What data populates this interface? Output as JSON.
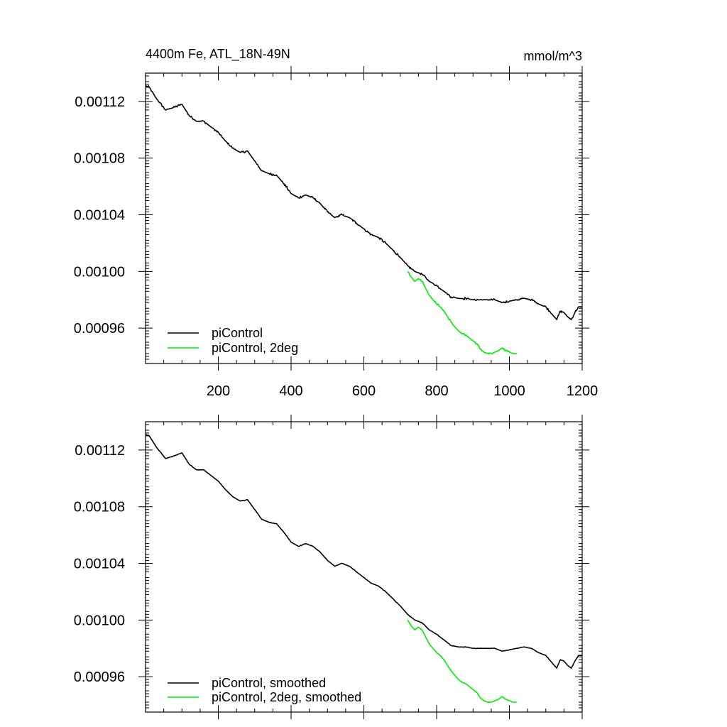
{
  "chart_data": [
    {
      "type": "line",
      "title": "4400m Fe, ATL_18N-49N",
      "units": "mmol/m^3",
      "xlim": [
        0,
        1200
      ],
      "ylim": [
        0.000935,
        0.00114
      ],
      "x_ticks": [
        200,
        400,
        600,
        800,
        1000,
        1200
      ],
      "x_tick_labels": [
        "200",
        "400",
        "600",
        "800",
        "1000",
        "1200"
      ],
      "y_ticks": [
        0.00112,
        0.00108,
        0.00104,
        0.001,
        0.00096
      ],
      "y_tick_labels": [
        "0.00112",
        "0.00108",
        "0.00104",
        "0.00100",
        "0.00096"
      ],
      "show_x_labels": true,
      "legend": [
        "piControl",
        "piControl, 2deg"
      ],
      "series": [
        {
          "name": "piControl",
          "color": "#000000",
          "noise": 0.6,
          "x": [
            0,
            10,
            30,
            55,
            80,
            100,
            120,
            140,
            160,
            180,
            200,
            220,
            240,
            260,
            280,
            300,
            320,
            340,
            360,
            380,
            400,
            420,
            440,
            460,
            480,
            500,
            520,
            540,
            560,
            580,
            600,
            620,
            640,
            660,
            680,
            700,
            720,
            740,
            760,
            780,
            800,
            820,
            840,
            860,
            880,
            900,
            920,
            940,
            960,
            980,
            1000,
            1020,
            1040,
            1060,
            1080,
            1100,
            1110,
            1120,
            1130,
            1140,
            1150,
            1160,
            1170,
            1180,
            1190,
            1200
          ],
          "y": [
            0.001131,
            0.00113,
            0.001122,
            0.001114,
            0.001116,
            0.001118,
            0.00111,
            0.001106,
            0.001106,
            0.001102,
            0.001098,
            0.001092,
            0.001087,
            0.001084,
            0.001085,
            0.001078,
            0.001071,
            0.001069,
            0.001068,
            0.001062,
            0.001055,
            0.001052,
            0.001054,
            0.001052,
            0.001048,
            0.001042,
            0.001038,
            0.00104,
            0.001038,
            0.001034,
            0.00103,
            0.001026,
            0.001024,
            0.00102,
            0.001015,
            0.00101,
            0.001004,
            0.001,
            0.000998,
            0.000993,
            0.00099,
            0.000986,
            0.000982,
            0.000981,
            0.000981,
            0.00098,
            0.00098,
            0.00098,
            0.00098,
            0.000978,
            0.000979,
            0.00098,
            0.000981,
            0.00098,
            0.000977,
            0.000975,
            0.000972,
            0.000969,
            0.000966,
            0.000972,
            0.000971,
            0.000968,
            0.000966,
            0.000971,
            0.000975,
            0.000975
          ]
        },
        {
          "name": "piControl, 2deg",
          "color": "#00ee00",
          "noise": 0.6,
          "x": [
            720,
            730,
            740,
            750,
            760,
            770,
            780,
            790,
            800,
            810,
            820,
            830,
            840,
            850,
            860,
            870,
            880,
            890,
            900,
            910,
            920,
            930,
            940,
            950,
            960,
            970,
            980,
            990,
            1000,
            1010,
            1020
          ],
          "y": [
            0.001,
            0.000996,
            0.000993,
            0.000995,
            0.000993,
            0.000988,
            0.000983,
            0.00098,
            0.000977,
            0.000975,
            0.000972,
            0.000968,
            0.000964,
            0.000961,
            0.000958,
            0.000956,
            0.000955,
            0.000953,
            0.000951,
            0.000949,
            0.000945,
            0.000943,
            0.000942,
            0.000942,
            0.000943,
            0.000944,
            0.000946,
            0.000944,
            0.000943,
            0.000942,
            0.000942
          ]
        }
      ]
    },
    {
      "type": "line",
      "title": "",
      "units": "",
      "xlim": [
        0,
        1200
      ],
      "ylim": [
        0.000935,
        0.00114
      ],
      "x_ticks": [
        200,
        400,
        600,
        800,
        1000,
        1200
      ],
      "x_tick_labels": [],
      "y_ticks": [
        0.00112,
        0.00108,
        0.00104,
        0.001,
        0.00096
      ],
      "y_tick_labels": [
        "0.00112",
        "0.00108",
        "0.00104",
        "0.00100",
        "0.00096"
      ],
      "show_x_labels": false,
      "legend": [
        "piControl, smoothed",
        "piControl, 2deg, smoothed"
      ],
      "series": [
        {
          "name": "piControl, smoothed",
          "color": "#000000",
          "noise": 0.15,
          "x": [
            0,
            10,
            30,
            55,
            80,
            100,
            120,
            140,
            160,
            180,
            200,
            220,
            240,
            260,
            280,
            300,
            320,
            340,
            360,
            380,
            400,
            420,
            440,
            460,
            480,
            500,
            520,
            540,
            560,
            580,
            600,
            620,
            640,
            660,
            680,
            700,
            720,
            740,
            760,
            780,
            800,
            820,
            840,
            860,
            880,
            900,
            920,
            940,
            960,
            980,
            1000,
            1020,
            1040,
            1060,
            1080,
            1100,
            1110,
            1120,
            1130,
            1140,
            1150,
            1160,
            1170,
            1180,
            1190,
            1200
          ],
          "y": [
            0.001131,
            0.00113,
            0.001122,
            0.001114,
            0.001116,
            0.001118,
            0.00111,
            0.001106,
            0.001106,
            0.001102,
            0.001098,
            0.001092,
            0.001087,
            0.001084,
            0.001085,
            0.001078,
            0.001071,
            0.001069,
            0.001068,
            0.001062,
            0.001055,
            0.001052,
            0.001054,
            0.001052,
            0.001048,
            0.001042,
            0.001038,
            0.00104,
            0.001038,
            0.001034,
            0.00103,
            0.001026,
            0.001024,
            0.00102,
            0.001015,
            0.00101,
            0.001004,
            0.001,
            0.000998,
            0.000993,
            0.00099,
            0.000986,
            0.000982,
            0.000981,
            0.000981,
            0.00098,
            0.00098,
            0.00098,
            0.00098,
            0.000978,
            0.000979,
            0.00098,
            0.000981,
            0.00098,
            0.000977,
            0.000975,
            0.000972,
            0.000969,
            0.000966,
            0.000972,
            0.000971,
            0.000968,
            0.000966,
            0.000971,
            0.000975,
            0.000975
          ]
        },
        {
          "name": "piControl, 2deg, smoothed",
          "color": "#00ee00",
          "noise": 0.15,
          "x": [
            720,
            730,
            740,
            750,
            760,
            770,
            780,
            790,
            800,
            810,
            820,
            830,
            840,
            850,
            860,
            870,
            880,
            890,
            900,
            910,
            920,
            930,
            940,
            950,
            960,
            970,
            980,
            990,
            1000,
            1010,
            1020
          ],
          "y": [
            0.001,
            0.000996,
            0.000993,
            0.000995,
            0.000993,
            0.000988,
            0.000983,
            0.00098,
            0.000977,
            0.000975,
            0.000972,
            0.000968,
            0.000964,
            0.000961,
            0.000958,
            0.000956,
            0.000955,
            0.000953,
            0.000951,
            0.000949,
            0.000945,
            0.000943,
            0.000942,
            0.000942,
            0.000943,
            0.000944,
            0.000946,
            0.000944,
            0.000943,
            0.000942,
            0.000942
          ]
        }
      ]
    }
  ]
}
